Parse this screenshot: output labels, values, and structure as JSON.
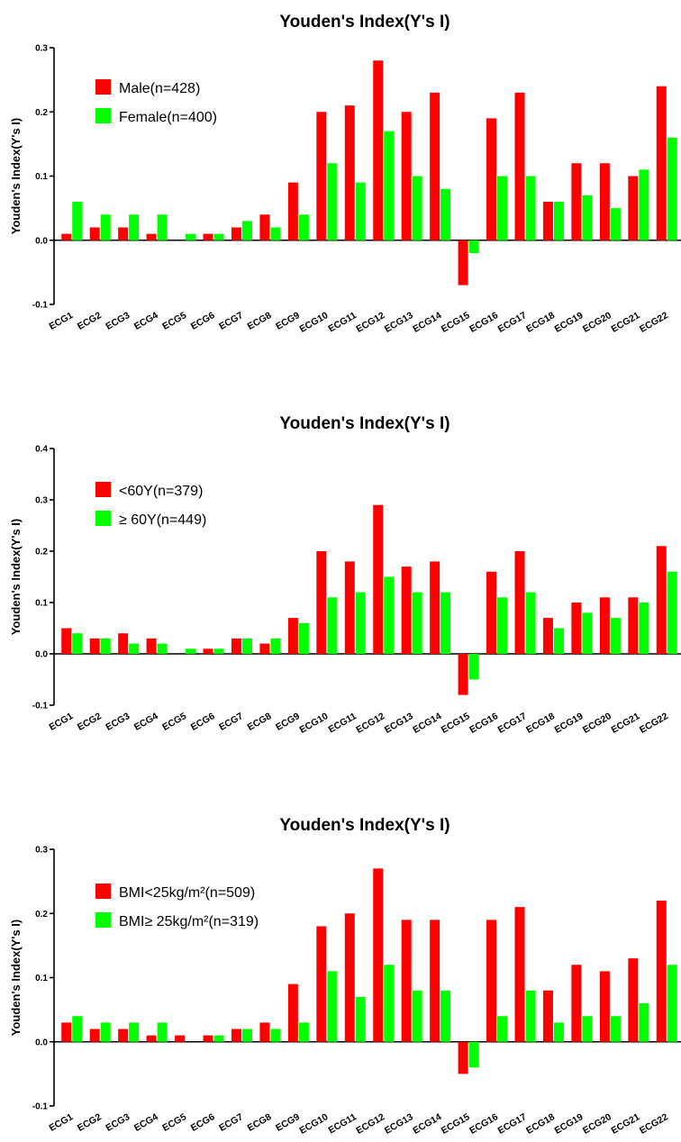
{
  "chart_data": [
    {
      "type": "bar",
      "title": "Youden's Index(Y's I)",
      "ylabel": "Youden's Index(Y's I)",
      "xlabel": "",
      "ylim": [
        -0.1,
        0.3
      ],
      "yticks": [
        "-0.1",
        "0.0",
        "0.1",
        "0.2",
        "0.3"
      ],
      "categories": [
        "ECG1",
        "ECG2",
        "ECG3",
        "ECG4",
        "ECG5",
        "ECG6",
        "ECG7",
        "ECG8",
        "ECG9",
        "ECG10",
        "ECG11",
        "ECG12",
        "ECG13",
        "ECG14",
        "ECG15",
        "ECG16",
        "ECG17",
        "ECG18",
        "ECG19",
        "ECG20",
        "ECG21",
        "ECG22"
      ],
      "legend_position": "top-left",
      "series": [
        {
          "name": "Male(n=428)",
          "color": "#ff0000",
          "values": [
            0.01,
            0.02,
            0.02,
            0.01,
            0.0,
            0.01,
            0.02,
            0.04,
            0.09,
            0.2,
            0.21,
            0.28,
            0.2,
            0.23,
            -0.07,
            0.19,
            0.23,
            0.06,
            0.12,
            0.12,
            0.1,
            0.24
          ]
        },
        {
          "name": "Female(n=400)",
          "color": "#00ff00",
          "values": [
            0.06,
            0.04,
            0.04,
            0.04,
            0.01,
            0.01,
            0.03,
            0.02,
            0.04,
            0.12,
            0.09,
            0.17,
            0.1,
            0.08,
            -0.02,
            0.1,
            0.1,
            0.06,
            0.07,
            0.05,
            0.11,
            0.16
          ]
        }
      ]
    },
    {
      "type": "bar",
      "title": "Youden's Index(Y's I)",
      "ylabel": "Youden's Index(Y's I)",
      "xlabel": "",
      "ylim": [
        -0.1,
        0.4
      ],
      "yticks": [
        "-0.1",
        "0.0",
        "0.1",
        "0.2",
        "0.3",
        "0.4"
      ],
      "categories": [
        "ECG1",
        "ECG2",
        "ECG3",
        "ECG4",
        "ECG5",
        "ECG6",
        "ECG7",
        "ECG8",
        "ECG9",
        "ECG10",
        "ECG11",
        "ECG12",
        "ECG13",
        "ECG14",
        "ECG15",
        "ECG16",
        "ECG17",
        "ECG18",
        "ECG19",
        "ECG20",
        "ECG21",
        "ECG22"
      ],
      "legend_position": "top-left",
      "series": [
        {
          "name": "<60Y(n=379)",
          "color": "#ff0000",
          "values": [
            0.05,
            0.03,
            0.04,
            0.03,
            0.0,
            0.01,
            0.03,
            0.02,
            0.07,
            0.2,
            0.18,
            0.29,
            0.17,
            0.18,
            -0.08,
            0.16,
            0.2,
            0.07,
            0.1,
            0.11,
            0.11,
            0.21
          ]
        },
        {
          "name": "≥ 60Y(n=449)",
          "color": "#00ff00",
          "values": [
            0.04,
            0.03,
            0.02,
            0.02,
            0.01,
            0.01,
            0.03,
            0.03,
            0.06,
            0.11,
            0.12,
            0.15,
            0.12,
            0.12,
            -0.05,
            0.11,
            0.12,
            0.05,
            0.08,
            0.07,
            0.1,
            0.16
          ]
        }
      ]
    },
    {
      "type": "bar",
      "title": "Youden's Index(Y's I)",
      "ylabel": "Youden's Index(Y's I)",
      "xlabel": "",
      "ylim": [
        -0.1,
        0.3
      ],
      "yticks": [
        "-0.1",
        "0.0",
        "0.1",
        "0.2",
        "0.3"
      ],
      "categories": [
        "ECG1",
        "ECG2",
        "ECG3",
        "ECG4",
        "ECG5",
        "ECG6",
        "ECG7",
        "ECG8",
        "ECG9",
        "ECG10",
        "ECG11",
        "ECG12",
        "ECG13",
        "ECG14",
        "ECG15",
        "ECG16",
        "ECG17",
        "ECG18",
        "ECG19",
        "ECG20",
        "ECG21",
        "ECG22"
      ],
      "legend_position": "top-left",
      "series": [
        {
          "name": "BMI<25kg/m²(n=509)",
          "color": "#ff0000",
          "values": [
            0.03,
            0.02,
            0.02,
            0.01,
            0.01,
            0.01,
            0.02,
            0.03,
            0.09,
            0.18,
            0.2,
            0.27,
            0.19,
            0.19,
            -0.05,
            0.19,
            0.21,
            0.08,
            0.12,
            0.11,
            0.13,
            0.22
          ]
        },
        {
          "name": "BMI≥ 25kg/m²(n=319)",
          "color": "#00ff00",
          "values": [
            0.04,
            0.03,
            0.03,
            0.03,
            0.0,
            0.01,
            0.02,
            0.02,
            0.03,
            0.11,
            0.07,
            0.12,
            0.08,
            0.08,
            -0.04,
            0.04,
            0.08,
            0.03,
            0.04,
            0.04,
            0.06,
            0.12
          ]
        }
      ]
    }
  ]
}
